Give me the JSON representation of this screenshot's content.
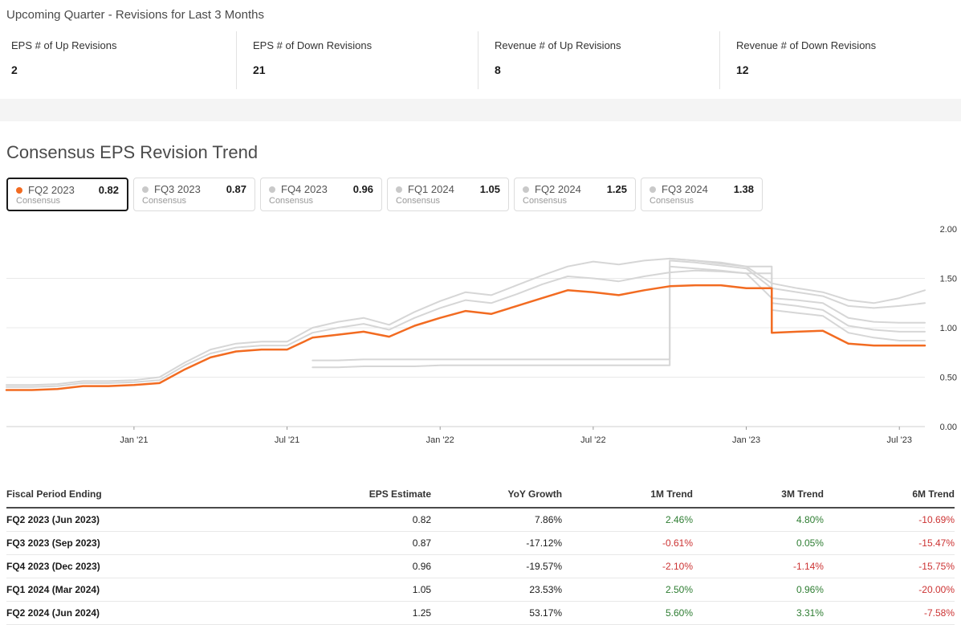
{
  "colors": {
    "accent": "#f26b21",
    "gray_line": "#d6d6d6",
    "positive": "#2e7d32",
    "negative": "#cc3333"
  },
  "header": {
    "title": "Upcoming Quarter - Revisions for Last 3 Months"
  },
  "stats": [
    {
      "label": "EPS # of Up Revisions",
      "value": "2"
    },
    {
      "label": "EPS # of Down Revisions",
      "value": "21"
    },
    {
      "label": "Revenue # of Up Revisions",
      "value": "8"
    },
    {
      "label": "Revenue # of Down Revisions",
      "value": "12"
    }
  ],
  "section": {
    "title": "Consensus EPS Revision Trend"
  },
  "legend": [
    {
      "period": "FQ2 2023",
      "value": "0.82",
      "sublabel": "Consensus",
      "selected": true
    },
    {
      "period": "FQ3 2023",
      "value": "0.87",
      "sublabel": "Consensus",
      "selected": false
    },
    {
      "period": "FQ4 2023",
      "value": "0.96",
      "sublabel": "Consensus",
      "selected": false
    },
    {
      "period": "FQ1 2024",
      "value": "1.05",
      "sublabel": "Consensus",
      "selected": false
    },
    {
      "period": "FQ2 2024",
      "value": "1.25",
      "sublabel": "Consensus",
      "selected": false
    },
    {
      "period": "FQ3 2024",
      "value": "1.38",
      "sublabel": "Consensus",
      "selected": false
    }
  ],
  "chart_data": {
    "type": "line",
    "title": "Consensus EPS Revision Trend",
    "ylim": [
      0,
      2
    ],
    "yticks": [
      {
        "value": 0.0,
        "label": "0.00"
      },
      {
        "value": 0.5,
        "label": "0.50"
      },
      {
        "value": 1.0,
        "label": "1.00"
      },
      {
        "value": 1.5,
        "label": "1.50"
      },
      {
        "value": 2.0,
        "label": "2.00"
      }
    ],
    "x": [
      "2020-08",
      "2020-09",
      "2020-10",
      "2020-11",
      "2020-12",
      "2021-01",
      "2021-02",
      "2021-03",
      "2021-04",
      "2021-05",
      "2021-06",
      "2021-07",
      "2021-08",
      "2021-09",
      "2021-10",
      "2021-11",
      "2021-12",
      "2022-01",
      "2022-02",
      "2022-03",
      "2022-04",
      "2022-05",
      "2022-06",
      "2022-07",
      "2022-08",
      "2022-09",
      "2022-10",
      "2022-11",
      "2022-12",
      "2023-01",
      "2023-02",
      "2023-03",
      "2023-04",
      "2023-05",
      "2023-06",
      "2023-07",
      "2023-08"
    ],
    "xticks": [
      {
        "index": 5,
        "label": "Jan '21"
      },
      {
        "index": 11,
        "label": "Jul '21"
      },
      {
        "index": 17,
        "label": "Jan '22"
      },
      {
        "index": 23,
        "label": "Jul '22"
      },
      {
        "index": 29,
        "label": "Jan '23"
      },
      {
        "index": 35,
        "label": "Jul '23"
      }
    ],
    "series": [
      {
        "name": "FQ2 2023",
        "color": "#f26b21",
        "width": 2.5,
        "values": [
          0.37,
          0.37,
          0.38,
          0.41,
          0.41,
          0.42,
          0.44,
          0.58,
          0.7,
          0.76,
          0.78,
          0.78,
          0.9,
          0.93,
          0.96,
          0.91,
          1.02,
          1.1,
          1.17,
          1.14,
          1.22,
          1.3,
          1.38,
          1.36,
          1.33,
          1.38,
          1.42,
          1.43,
          1.43,
          1.4,
          0.95,
          0.96,
          0.97,
          0.84,
          0.82,
          0.82,
          0.82
        ]
      },
      {
        "name": "FQ3 2023",
        "color": "#d6d6d6",
        "width": 2,
        "values": [
          0.4,
          0.4,
          0.41,
          0.44,
          0.44,
          0.45,
          0.47,
          0.62,
          0.74,
          0.8,
          0.82,
          0.82,
          0.95,
          1.0,
          1.04,
          0.98,
          1.1,
          1.2,
          1.28,
          1.25,
          1.34,
          1.44,
          1.52,
          1.5,
          1.47,
          1.52,
          1.56,
          1.58,
          1.57,
          1.55,
          1.18,
          1.15,
          1.12,
          0.95,
          0.9,
          0.87,
          0.87
        ]
      },
      {
        "name": "FQ4 2023",
        "color": "#d6d6d6",
        "width": 2,
        "values": [
          0.42,
          0.42,
          0.43,
          0.46,
          0.46,
          0.47,
          0.5,
          0.65,
          0.78,
          0.84,
          0.86,
          0.86,
          1.0,
          1.06,
          1.1,
          1.03,
          1.16,
          1.27,
          1.36,
          1.33,
          1.43,
          1.53,
          1.62,
          1.67,
          1.64,
          1.68,
          1.7,
          1.68,
          1.66,
          1.62,
          1.25,
          1.22,
          1.18,
          1.02,
          0.98,
          0.96,
          0.96
        ]
      },
      {
        "name": "FQ1 2024",
        "color": "#d6d6d6",
        "width": 2,
        "values": [
          null,
          null,
          null,
          null,
          null,
          null,
          null,
          null,
          null,
          null,
          null,
          null,
          0.6,
          0.6,
          0.61,
          0.61,
          0.61,
          0.62,
          0.62,
          0.62,
          0.62,
          0.62,
          0.62,
          0.62,
          0.62,
          0.62,
          1.62,
          1.6,
          1.58,
          1.55,
          1.3,
          1.28,
          1.25,
          1.1,
          1.06,
          1.05,
          1.05
        ]
      },
      {
        "name": "FQ2 2024",
        "color": "#d6d6d6",
        "width": 2,
        "values": [
          null,
          null,
          null,
          null,
          null,
          null,
          null,
          null,
          null,
          null,
          null,
          null,
          0.67,
          0.67,
          0.68,
          0.68,
          0.68,
          0.68,
          0.68,
          0.68,
          0.68,
          0.68,
          0.68,
          0.68,
          0.68,
          0.68,
          1.68,
          1.66,
          1.63,
          1.6,
          1.4,
          1.36,
          1.32,
          1.22,
          1.2,
          1.22,
          1.25
        ]
      },
      {
        "name": "FQ3 2024",
        "color": "#d6d6d6",
        "width": 2,
        "values": [
          null,
          null,
          null,
          null,
          null,
          null,
          null,
          null,
          null,
          null,
          null,
          null,
          null,
          null,
          null,
          null,
          null,
          null,
          null,
          null,
          null,
          null,
          null,
          null,
          null,
          null,
          1.7,
          1.68,
          1.65,
          1.62,
          1.45,
          1.4,
          1.36,
          1.28,
          1.25,
          1.3,
          1.38
        ]
      }
    ]
  },
  "table": {
    "columns": [
      "Fiscal Period Ending",
      "EPS Estimate",
      "YoY Growth",
      "1M Trend",
      "3M Trend",
      "6M Trend"
    ],
    "trend_columns": [
      3,
      4,
      5
    ],
    "rows": [
      [
        "FQ2 2023 (Jun 2023)",
        "0.82",
        "7.86%",
        "2.46%",
        "4.80%",
        "-10.69%"
      ],
      [
        "FQ3 2023 (Sep 2023)",
        "0.87",
        "-17.12%",
        "-0.61%",
        "0.05%",
        "-15.47%"
      ],
      [
        "FQ4 2023 (Dec 2023)",
        "0.96",
        "-19.57%",
        "-2.10%",
        "-1.14%",
        "-15.75%"
      ],
      [
        "FQ1 2024 (Mar 2024)",
        "1.05",
        "23.53%",
        "2.50%",
        "0.96%",
        "-20.00%"
      ],
      [
        "FQ2 2024 (Jun 2024)",
        "1.25",
        "53.17%",
        "5.60%",
        "3.31%",
        "-7.58%"
      ]
    ]
  }
}
